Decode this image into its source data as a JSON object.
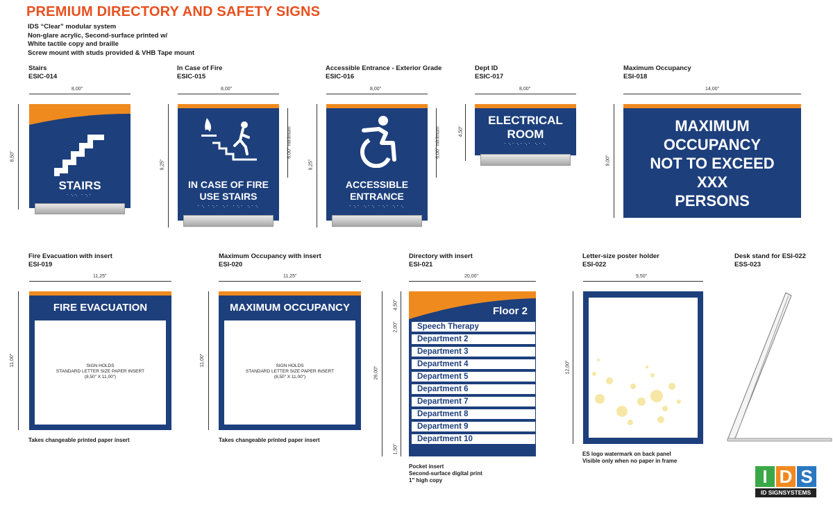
{
  "header": {
    "title": "PREMIUM DIRECTORY AND SAFETY SIGNS",
    "desc_lines": [
      "IDS “Clear” modular system",
      "Non-glare acrylic, Second-surface printed w/",
      "White tactile copy and braille",
      "Screw mount with studs provided & VHB Tape mount"
    ]
  },
  "signs": {
    "stairs": {
      "name": "Stairs",
      "code": "ESIC-014",
      "width": "8,00\"",
      "height": "8,50\"",
      "text": "STAIRS",
      "braille": "⠁⠑⠑ ⠁⠑⠁"
    },
    "fire": {
      "name": "In Case of Fire",
      "code": "ESIC-015",
      "width": "8,00\"",
      "height": "9,25\"",
      "min": "6,00\" minimum",
      "line1": "IN CASE OF FIRE",
      "line2": "USE STAIRS",
      "braille": "⠁⠑ ⠁⠑⠁ ⠑⠁ ⠁⠑⠁ ⠑⠁⠑"
    },
    "accessible": {
      "name": "Accessible Entrance - Exterior Grade",
      "code": "ESIC-016",
      "width": "8,00\"",
      "height": "9,25\"",
      "min": "6,00\" minimum",
      "line1": "ACCESSIBLE",
      "line2": "ENTRANCE",
      "braille": "⠁⠑⠁ ⠑⠁⠑ ⠁⠑⠁ ⠑⠁⠑"
    },
    "dept": {
      "name": "Dept ID",
      "code": "ESIC-017",
      "width": "8,00\"",
      "height": "4,50\"",
      "line1": "ELECTRICAL",
      "line2": "ROOM",
      "braille": "⠁⠑⠁⠑⠁⠑⠁ ⠑⠁⠑"
    },
    "occupancy": {
      "name": "Maximum Occupancy",
      "code": "ESI-018",
      "width": "14,00\"",
      "height": "9,00\"",
      "lines": [
        "MAXIMUM",
        "OCCUPANCY",
        "NOT TO EXCEED",
        "XXX",
        "PERSONS"
      ]
    },
    "fire_evac": {
      "name": "Fire Evacuation with insert",
      "code": "ESI-019",
      "width": "11,25\"",
      "height": "11,00\"",
      "heading": "FIRE EVACUATION",
      "insert": [
        "SIGN HOLDS",
        "STANDARD LETTER SIZE PAPER INSERT",
        "(8,50\" X 11,00\")"
      ],
      "note": "Takes changeable printed paper insert"
    },
    "occ_insert": {
      "name": "Maximum Occupancy with insert",
      "code": "ESI-020",
      "width": "11,25\"",
      "height": "11,00\"",
      "heading": "MAXIMUM OCCUPANCY",
      "insert": [
        "SIGN HOLDS",
        "STANDARD LETTER SIZE PAPER INSERT",
        "(8,50\" X 11,00\")"
      ],
      "note": "Takes changeable printed paper insert"
    },
    "directory": {
      "name": "Directory with insert",
      "code": "ESI-021",
      "width": "20,00\"",
      "height": "26,00\"",
      "header_dim": "4,50\"",
      "row_dim": "2,00\"",
      "bottom_dim": "1,50\"",
      "floor": "Floor 2",
      "rows": [
        "Speech Therapy",
        "Department 2",
        "Department 3",
        "Department 4",
        "Department 5",
        "Department 6",
        "Department 7",
        "Department 8",
        "Department 9",
        "Department 10"
      ],
      "notes": [
        "Pocket insert",
        "Second-surface digital print",
        "1\" high copy"
      ]
    },
    "poster": {
      "name": "Letter-size poster holder",
      "code": "ESI-022",
      "width": "9,50\"",
      "height": "12,00\"",
      "notes": [
        "ES logo watermark on back panel",
        "Visible only when no paper in frame"
      ]
    },
    "desk": {
      "name": "Desk stand for ESI-022",
      "code": "ESS-023"
    }
  },
  "logo": {
    "letters": [
      "I",
      "D",
      "S"
    ],
    "colors": [
      "#3aa846",
      "#f08a1f",
      "#2a78c2"
    ],
    "tagline": "ID SIGNSYSTEMS"
  },
  "colors": {
    "blue": "#1d3f7c",
    "orange": "#ef8a1f",
    "title": "#e8501e"
  }
}
